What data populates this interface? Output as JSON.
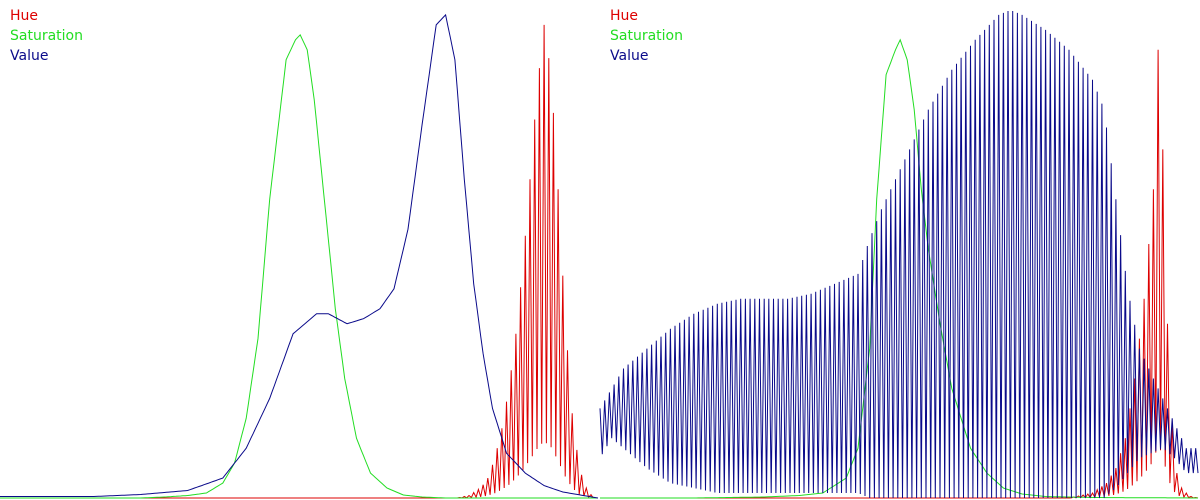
{
  "colors": {
    "hue": "#dd0000",
    "saturation": "#22dd22",
    "value": "#0a0a8a",
    "background": "#ffffff"
  },
  "legend": {
    "hue": "Hue",
    "saturation": "Saturation",
    "value": "Value"
  },
  "chart_data": [
    {
      "type": "line",
      "panel": "left",
      "title": "",
      "xlim": [
        0,
        255
      ],
      "ylim": [
        0,
        1
      ],
      "grid": false,
      "legend_position": "top-left",
      "series": [
        {
          "name": "Hue",
          "style": "spiky",
          "x": [
            195,
            200,
            205,
            208,
            211,
            214,
            217,
            220,
            223,
            226,
            229,
            232,
            235,
            238,
            241,
            244,
            247,
            250,
            253
          ],
          "values": [
            0.0,
            0.005,
            0.02,
            0.04,
            0.08,
            0.14,
            0.22,
            0.33,
            0.47,
            0.64,
            0.82,
            0.95,
            0.85,
            0.62,
            0.36,
            0.17,
            0.06,
            0.02,
            0.0
          ]
        },
        {
          "name": "Saturation",
          "style": "smooth",
          "x": [
            0,
            20,
            40,
            60,
            70,
            80,
            88,
            95,
            100,
            105,
            110,
            115,
            118,
            122,
            126,
            128,
            131,
            134,
            137,
            140,
            143,
            147,
            152,
            158,
            165,
            172,
            180,
            190
          ],
          "values": [
            0.0,
            0.0,
            0.0,
            0.0,
            0.002,
            0.005,
            0.01,
            0.03,
            0.07,
            0.16,
            0.32,
            0.6,
            0.72,
            0.88,
            0.92,
            0.93,
            0.9,
            0.8,
            0.66,
            0.52,
            0.38,
            0.24,
            0.12,
            0.05,
            0.02,
            0.006,
            0.002,
            0.0
          ]
        },
        {
          "name": "Value",
          "style": "smooth",
          "x": [
            40,
            60,
            80,
            95,
            105,
            115,
            125,
            135,
            140,
            148,
            155,
            162,
            168,
            174,
            180,
            186,
            190,
            194,
            198,
            202,
            206,
            210,
            216,
            224,
            232,
            240,
            250,
            255
          ],
          "values": [
            0.003,
            0.007,
            0.015,
            0.04,
            0.1,
            0.2,
            0.33,
            0.37,
            0.37,
            0.35,
            0.36,
            0.38,
            0.42,
            0.54,
            0.75,
            0.95,
            0.97,
            0.88,
            0.64,
            0.43,
            0.29,
            0.18,
            0.09,
            0.05,
            0.025,
            0.012,
            0.004,
            0.0
          ]
        }
      ]
    },
    {
      "type": "line",
      "panel": "right",
      "title": "",
      "xlim": [
        0,
        255
      ],
      "ylim": [
        0,
        1
      ],
      "grid": false,
      "legend_position": "top-left",
      "series": [
        {
          "name": "Hue",
          "style": "spiky",
          "x": [
            200,
            210,
            216,
            220,
            224,
            228,
            232,
            236,
            238,
            240,
            242,
            244,
            246,
            248,
            250,
            252,
            255
          ],
          "values": [
            0.0,
            0.01,
            0.03,
            0.06,
            0.12,
            0.24,
            0.4,
            0.62,
            0.9,
            0.7,
            0.35,
            0.15,
            0.05,
            0.02,
            0.01,
            0.003,
            0.0
          ]
        },
        {
          "name": "Saturation",
          "style": "smooth",
          "x": [
            0,
            40,
            70,
            85,
            95,
            105,
            110,
            115,
            118,
            122,
            126,
            128,
            131,
            134,
            137,
            140,
            145,
            150,
            158,
            165,
            172,
            180,
            190,
            210,
            255
          ],
          "values": [
            0.0,
            0.0,
            0.002,
            0.005,
            0.01,
            0.04,
            0.1,
            0.3,
            0.6,
            0.85,
            0.9,
            0.92,
            0.88,
            0.78,
            0.62,
            0.5,
            0.35,
            0.22,
            0.1,
            0.05,
            0.02,
            0.008,
            0.003,
            0.001,
            0.0
          ]
        },
        {
          "name": "Value",
          "style": "comb",
          "x": [
            0,
            5,
            10,
            20,
            30,
            40,
            50,
            60,
            70,
            80,
            90,
            100,
            110,
            115,
            120,
            130,
            140,
            150,
            160,
            170,
            175,
            180,
            190,
            200,
            210,
            215,
            220,
            225,
            230,
            235,
            240,
            245,
            250
          ],
          "values": [
            0.18,
            0.22,
            0.26,
            0.3,
            0.34,
            0.37,
            0.39,
            0.4,
            0.4,
            0.4,
            0.41,
            0.43,
            0.45,
            0.52,
            0.58,
            0.68,
            0.78,
            0.86,
            0.92,
            0.97,
            0.98,
            0.97,
            0.94,
            0.9,
            0.84,
            0.78,
            0.6,
            0.42,
            0.3,
            0.25,
            0.2,
            0.15,
            0.1
          ],
          "trough": [
            0.08,
            0.12,
            0.1,
            0.06,
            0.03,
            0.02,
            0.01,
            0.01,
            0.01,
            0.01,
            0.01,
            0.01,
            0.01,
            0.0,
            0.0,
            0.0,
            0.0,
            0.0,
            0.0,
            0.0,
            0.0,
            0.0,
            0.0,
            0.0,
            0.0,
            0.0,
            0.02,
            0.05,
            0.08,
            0.09,
            0.1,
            0.08,
            0.05
          ]
        }
      ]
    }
  ]
}
